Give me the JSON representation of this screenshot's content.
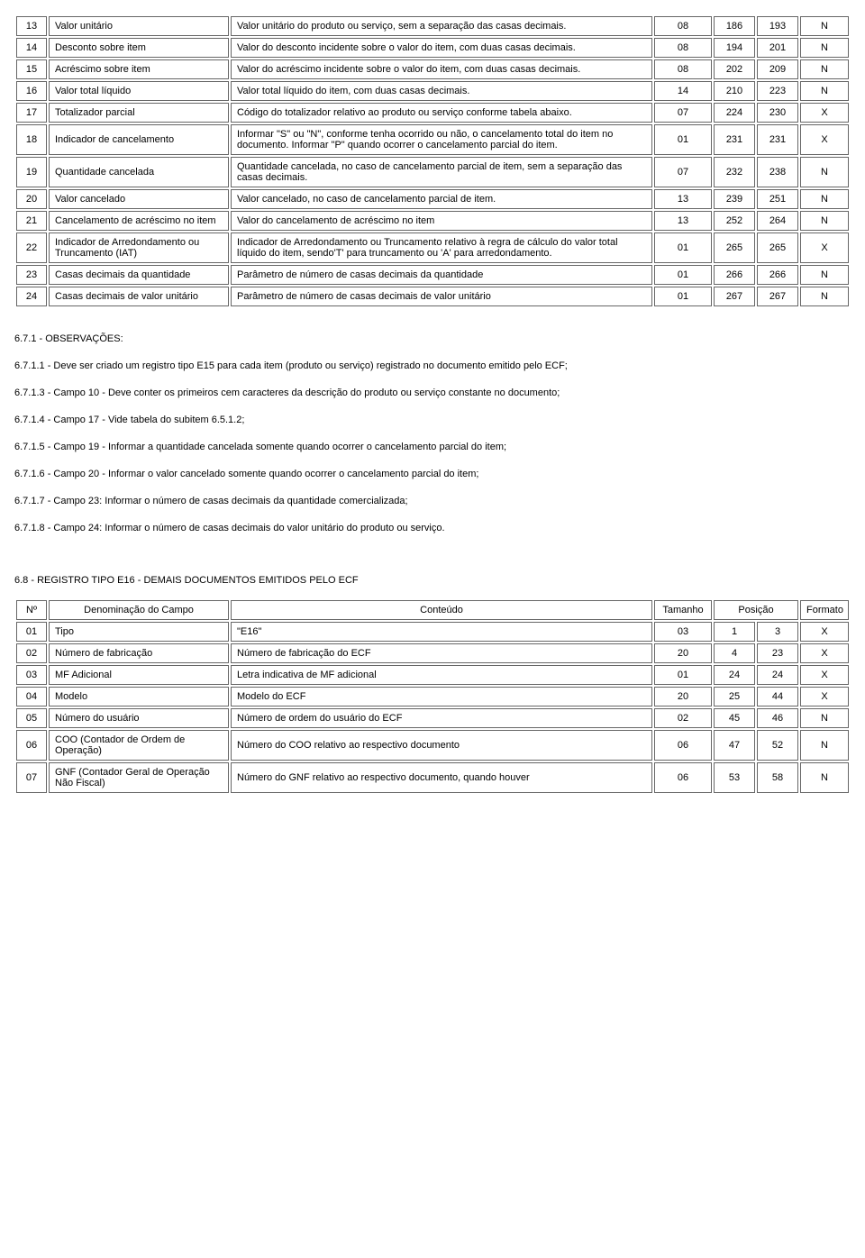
{
  "table1": {
    "rows": [
      {
        "n": "13",
        "denom": "Valor unitário",
        "conteudo": "Valor unitário do produto ou serviço, sem a separação das casas decimais.",
        "tam": "08",
        "p1": "186",
        "p2": "193",
        "fmt": "N"
      },
      {
        "n": "14",
        "denom": "Desconto sobre item",
        "conteudo": "Valor do desconto incidente sobre o valor do item, com duas casas decimais.",
        "tam": "08",
        "p1": "194",
        "p2": "201",
        "fmt": "N"
      },
      {
        "n": "15",
        "denom": "Acréscimo sobre item",
        "conteudo": "Valor do acréscimo incidente sobre o valor do item, com duas casas decimais.",
        "tam": "08",
        "p1": "202",
        "p2": "209",
        "fmt": "N"
      },
      {
        "n": "16",
        "denom": "Valor total líquido",
        "conteudo": "Valor total líquido do item, com duas casas decimais.",
        "tam": "14",
        "p1": "210",
        "p2": "223",
        "fmt": "N"
      },
      {
        "n": "17",
        "denom": "Totalizador parcial",
        "conteudo": "Código do totalizador relativo ao produto ou serviço conforme tabela abaixo.",
        "tam": "07",
        "p1": "224",
        "p2": "230",
        "fmt": "X"
      },
      {
        "n": "18",
        "denom": "Indicador de cancelamento",
        "conteudo": "Informar \"S\" ou \"N\", conforme tenha ocorrido ou não, o cancelamento total do item no documento. Informar \"P\" quando ocorrer o cancelamento parcial do item.",
        "tam": "01",
        "p1": "231",
        "p2": "231",
        "fmt": "X"
      },
      {
        "n": "19",
        "denom": "Quantidade cancelada",
        "conteudo": "Quantidade cancelada, no caso de cancelamento parcial de item, sem a separação das casas decimais.",
        "tam": "07",
        "p1": "232",
        "p2": "238",
        "fmt": "N"
      },
      {
        "n": "20",
        "denom": "Valor cancelado",
        "conteudo": "Valor cancelado, no caso de cancelamento parcial de item.",
        "tam": "13",
        "p1": "239",
        "p2": "251",
        "fmt": "N"
      },
      {
        "n": "21",
        "denom": "Cancelamento de acréscimo no item",
        "conteudo": "Valor do cancelamento de acréscimo no item",
        "tam": "13",
        "p1": "252",
        "p2": "264",
        "fmt": "N"
      },
      {
        "n": "22",
        "denom": "Indicador de Arredondamento ou Truncamento (IAT)",
        "conteudo": "Indicador de Arredondamento ou Truncamento relativo à regra de cálculo do valor total líquido do item, sendo'T' para truncamento ou 'A' para arredondamento.",
        "tam": "01",
        "p1": "265",
        "p2": "265",
        "fmt": "X"
      },
      {
        "n": "23",
        "denom": "Casas decimais da quantidade",
        "conteudo": "Parâmetro de número de casas decimais da quantidade",
        "tam": "01",
        "p1": "266",
        "p2": "266",
        "fmt": "N"
      },
      {
        "n": "24",
        "denom": "Casas decimais de valor unitário",
        "conteudo": "Parâmetro de número de casas decimais de valor unitário",
        "tam": "01",
        "p1": "267",
        "p2": "267",
        "fmt": "N"
      }
    ]
  },
  "obs": {
    "title": "6.7.1 - OBSERVAÇÕES:",
    "items": [
      "6.7.1.1 - Deve ser criado um registro tipo E15 para cada item (produto ou serviço) registrado no documento emitido pelo ECF;",
      "6.7.1.3 - Campo 10 - Deve conter os primeiros cem caracteres da descrição do produto ou serviço constante no documento;",
      "6.7.1.4 - Campo 17 - Vide tabela do subitem 6.5.1.2;",
      "6.7.1.5 - Campo 19 - Informar a quantidade cancelada somente quando ocorrer o cancelamento parcial do item;",
      "6.7.1.6 - Campo 20 - Informar o valor cancelado somente quando ocorrer o cancelamento parcial do item;",
      "6.7.1.7 - Campo 23: Informar o número de casas decimais da quantidade comercializada;",
      "6.7.1.8 - Campo 24: Informar o número de casas decimais do valor unitário do produto ou serviço."
    ]
  },
  "section2": {
    "title": "6.8 - REGISTRO TIPO E16 - DEMAIS DOCUMENTOS EMITIDOS PELO ECF",
    "headers": {
      "n": "Nº",
      "denom": "Denominação do Campo",
      "conteudo": "Conteúdo",
      "tam": "Tamanho",
      "pos": "Posição",
      "fmt": "Formato"
    },
    "rows": [
      {
        "n": "01",
        "denom": "Tipo",
        "conteudo": "\"E16\"",
        "tam": "03",
        "p1": "1",
        "p2": "3",
        "fmt": "X"
      },
      {
        "n": "02",
        "denom": "Número de fabricação",
        "conteudo": "Número de fabricação do ECF",
        "tam": "20",
        "p1": "4",
        "p2": "23",
        "fmt": "X"
      },
      {
        "n": "03",
        "denom": "MF Adicional",
        "conteudo": "Letra indicativa de MF adicional",
        "tam": "01",
        "p1": "24",
        "p2": "24",
        "fmt": "X"
      },
      {
        "n": "04",
        "denom": "Modelo",
        "conteudo": "Modelo do ECF",
        "tam": "20",
        "p1": "25",
        "p2": "44",
        "fmt": "X"
      },
      {
        "n": "05",
        "denom": "Número do usuário",
        "conteudo": "Número de ordem do usuário do ECF",
        "tam": "02",
        "p1": "45",
        "p2": "46",
        "fmt": "N"
      },
      {
        "n": "06",
        "denom": "COO (Contador de Ordem de Operação)",
        "conteudo": "Número do COO relativo ao respectivo documento",
        "tam": "06",
        "p1": "47",
        "p2": "52",
        "fmt": "N"
      },
      {
        "n": "07",
        "denom": "GNF (Contador Geral de Operação Não Fiscal)",
        "conteudo": "Número do GNF relativo ao respectivo documento, quando houver",
        "tam": "06",
        "p1": "53",
        "p2": "58",
        "fmt": "N"
      }
    ]
  }
}
